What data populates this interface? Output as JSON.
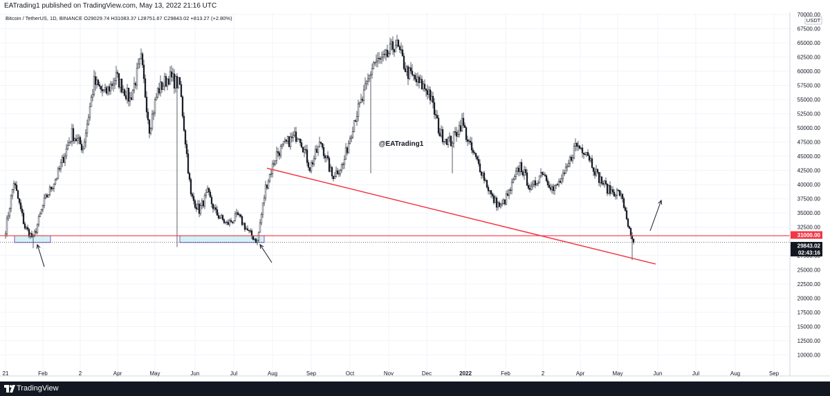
{
  "header": {
    "published": "EATrading1 published on TradingView.com, May 13, 2022 21:16 UTC"
  },
  "footer": {
    "brand": "TradingView"
  },
  "chart_data": {
    "type": "candlestick",
    "symbol_line": "Bitcoin / TetherUS, 1D, BINANCE  O29029.74  H31083.37  L28751.67  C29843.02  +813.27 (+2.80%)",
    "watermark": "@EATrading1",
    "currency": "USDT",
    "ylim": [
      7000,
      70000
    ],
    "y_ticks": [
      "70000.00",
      "67500.00",
      "65000.00",
      "62500.00",
      "60000.00",
      "57500.00",
      "55000.00",
      "52500.00",
      "50000.00",
      "47500.00",
      "45000.00",
      "42500.00",
      "40000.00",
      "37500.00",
      "35000.00",
      "32500.00",
      "27500.00",
      "25000.00",
      "22500.00",
      "20000.00",
      "17500.00",
      "15000.00",
      "12500.00",
      "10000.00"
    ],
    "x_ticks": [
      "21",
      "Feb",
      "2",
      "Apr",
      "May",
      "Jun",
      "Jul",
      "Aug",
      "Sep",
      "Oct",
      "Nov",
      "Dec",
      "2022",
      "Feb",
      "2",
      "Apr",
      "May",
      "Jun",
      "Jul",
      "Aug",
      "Sep"
    ],
    "price_labels": [
      {
        "text": "31000.00",
        "value": 31000,
        "color": "#f23645",
        "text_color": "#ffffff"
      },
      {
        "text": "29843.02",
        "value": 29843.02,
        "color": "#131722",
        "text_color": "#ffffff"
      },
      {
        "text": "02:43:16",
        "value": 28900,
        "color": "#131722",
        "text_color": "#ffffff"
      }
    ],
    "horizontal_line": {
      "value": 31000,
      "color": "#f23645"
    },
    "last_price_line": {
      "value": 29843.02,
      "color": "#131722"
    },
    "trendline": {
      "from_value": 42900,
      "to_value": 26000,
      "color": "#f23645"
    },
    "support_zones": [
      {
        "low": 29800,
        "high": 31000,
        "fill": "#b2ebf2",
        "stroke": "#7e57c2"
      },
      {
        "low": 29800,
        "high": 31000,
        "fill": "#b2ebf2",
        "stroke": "#7e57c2"
      }
    ],
    "colors": {
      "up": "#ffffff",
      "down": "#131722",
      "wick": "#131722",
      "grid": "#f0f3fa",
      "red": "#f23645"
    },
    "anchors": [
      {
        "i": 0,
        "v": 32000
      },
      {
        "i": 6,
        "v": 40500
      },
      {
        "i": 14,
        "v": 32500
      },
      {
        "i": 20,
        "v": 30500
      },
      {
        "i": 28,
        "v": 37000
      },
      {
        "i": 38,
        "v": 42000
      },
      {
        "i": 48,
        "v": 49000
      },
      {
        "i": 56,
        "v": 46500
      },
      {
        "i": 64,
        "v": 58000
      },
      {
        "i": 72,
        "v": 56000
      },
      {
        "i": 80,
        "v": 59000
      },
      {
        "i": 90,
        "v": 55000
      },
      {
        "i": 98,
        "v": 62000
      },
      {
        "i": 104,
        "v": 50000
      },
      {
        "i": 110,
        "v": 56500
      },
      {
        "i": 118,
        "v": 59000
      },
      {
        "i": 126,
        "v": 57500
      },
      {
        "i": 134,
        "v": 38000
      },
      {
        "i": 140,
        "v": 35500
      },
      {
        "i": 146,
        "v": 38500
      },
      {
        "i": 152,
        "v": 35000
      },
      {
        "i": 160,
        "v": 33000
      },
      {
        "i": 168,
        "v": 34500
      },
      {
        "i": 176,
        "v": 31500
      },
      {
        "i": 182,
        "v": 30000
      },
      {
        "i": 188,
        "v": 39500
      },
      {
        "i": 196,
        "v": 45500
      },
      {
        "i": 204,
        "v": 47500
      },
      {
        "i": 212,
        "v": 49000
      },
      {
        "i": 220,
        "v": 43000
      },
      {
        "i": 228,
        "v": 47500
      },
      {
        "i": 236,
        "v": 41500
      },
      {
        "i": 244,
        "v": 43500
      },
      {
        "i": 252,
        "v": 51500
      },
      {
        "i": 258,
        "v": 55000
      },
      {
        "i": 266,
        "v": 61500
      },
      {
        "i": 274,
        "v": 62000
      },
      {
        "i": 282,
        "v": 65000
      },
      {
        "i": 290,
        "v": 60000
      },
      {
        "i": 298,
        "v": 58000
      },
      {
        "i": 306,
        "v": 56500
      },
      {
        "i": 314,
        "v": 49000
      },
      {
        "i": 322,
        "v": 47500
      },
      {
        "i": 330,
        "v": 51000
      },
      {
        "i": 336,
        "v": 46500
      },
      {
        "i": 344,
        "v": 42500
      },
      {
        "i": 352,
        "v": 37500
      },
      {
        "i": 358,
        "v": 36000
      },
      {
        "i": 364,
        "v": 38500
      },
      {
        "i": 372,
        "v": 43500
      },
      {
        "i": 380,
        "v": 39000
      },
      {
        "i": 388,
        "v": 42500
      },
      {
        "i": 396,
        "v": 39000
      },
      {
        "i": 404,
        "v": 41500
      },
      {
        "i": 412,
        "v": 47000
      },
      {
        "i": 420,
        "v": 46000
      },
      {
        "i": 428,
        "v": 41500
      },
      {
        "i": 436,
        "v": 39000
      },
      {
        "i": 444,
        "v": 38500
      },
      {
        "i": 448,
        "v": 35500
      },
      {
        "i": 452,
        "v": 30500
      },
      {
        "i": 454,
        "v": 29843
      }
    ],
    "extra_wicks": [
      {
        "i": 20,
        "low": 28800
      },
      {
        "i": 124,
        "low": 29000
      },
      {
        "i": 182,
        "low": 29300
      },
      {
        "i": 264,
        "low": 42000
      },
      {
        "i": 323,
        "low": 42000
      },
      {
        "i": 453,
        "low": 26700
      }
    ],
    "annotations": [
      {
        "type": "arrow",
        "label": "up-arrow-1"
      },
      {
        "type": "arrow",
        "label": "up-arrow-2"
      },
      {
        "type": "arrow",
        "label": "up-arrow-3"
      }
    ]
  }
}
